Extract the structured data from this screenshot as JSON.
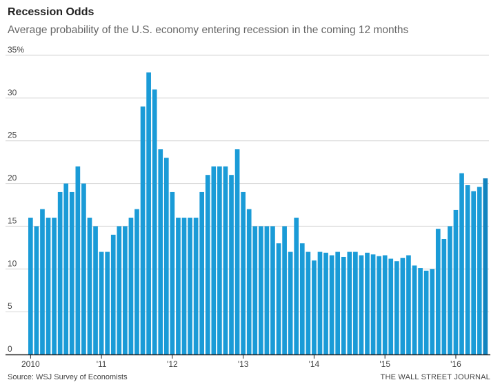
{
  "chart_data": {
    "type": "bar",
    "title": "Recession Odds",
    "subtitle": "Average probability of the U.S. economy entering recession in the coming 12 months",
    "source": "Source: WSJ Survey of Economists",
    "credit": "THE WALL STREET JOURNAL",
    "ylim": [
      0,
      35
    ],
    "y_ticks": [
      0,
      5,
      10,
      15,
      20,
      25,
      30,
      35
    ],
    "y_tick_labels": [
      "0",
      "5",
      "10",
      "15",
      "20",
      "25",
      "30",
      "35%"
    ],
    "x_tick_labels": [
      "2010",
      "'11",
      "'12",
      "'13",
      "'14",
      "'15",
      "'16"
    ],
    "bar_color": "#1a9bd7",
    "grid": true,
    "values": [
      16,
      15,
      17,
      16,
      16,
      19,
      20,
      19,
      22,
      20,
      16,
      15,
      12,
      12,
      14,
      15,
      15,
      16,
      17,
      29,
      33,
      31,
      24,
      23,
      19,
      16,
      16,
      16,
      16,
      19,
      21,
      22,
      22,
      22,
      21,
      24,
      19,
      17,
      15,
      15,
      15,
      15,
      13,
      15,
      12,
      16,
      13,
      12,
      11,
      12,
      11.9,
      11.6,
      12,
      11.4,
      12,
      12,
      11.6,
      11.9,
      11.7,
      11.5,
      11.6,
      11.2,
      10.9,
      11.3,
      11.6,
      10.4,
      10.1,
      9.8,
      10,
      14.7,
      13.5,
      15,
      16.9,
      21.2,
      19.8,
      19.1,
      19.6,
      20.6
    ]
  }
}
